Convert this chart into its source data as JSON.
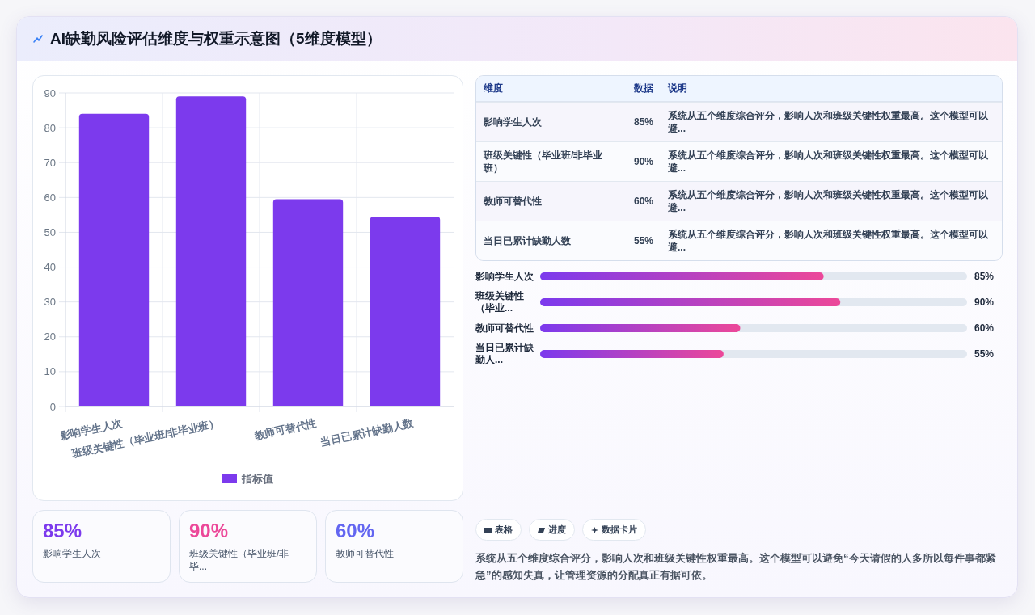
{
  "chart_data": [
    {
      "type": "bar",
      "title": "AI缺勤风险评估维度与权重示意图（5维度模型）",
      "categories": [
        "影响学生人次",
        "班级关键性（毕业班/非毕业班）",
        "教师可替代性",
        "当日已累计缺勤人数"
      ],
      "series": [
        {
          "name": "指标值",
          "color": "#7c3aed",
          "values": [
            84,
            89,
            59.5,
            54.5
          ]
        }
      ],
      "ylim": [
        0,
        90
      ],
      "yticks": [
        0,
        10,
        20,
        30,
        40,
        50,
        60,
        70,
        80,
        90
      ],
      "grid": true,
      "legend": "bottom"
    },
    {
      "type": "other",
      "annotations": [
        "维度",
        "数据",
        "说明",
        "影响学生人次",
        "85%",
        "系统从五个维度综合评分，影响人次和班级关键性权重最高。这个模型可以避...",
        "班级关键性（毕业班/非毕业班）",
        "90%",
        "系统从五个维度综合评分，影响人次和班级关键性权重最高。这个模型可以避...",
        "教师可替代性",
        "60%",
        "系统从五个维度综合评分，影响人次和班级关键性权重最高。这个模型可以避...",
        "当日已累计缺勤人数",
        "55%",
        "系统从五个维度综合评分，影响人次和班级关键性权重最高。这个模型可以避..."
      ]
    },
    {
      "type": "bar",
      "orientation": "horizontal",
      "categories": [
        "影响学生人次",
        "班级关键性（毕业...",
        "教师可替代性",
        "当日已累计缺勤人..."
      ],
      "series": [
        {
          "color": "#7c3aed",
          "values": [
            85,
            90,
            60,
            55
          ],
          "value_labels": [
            "85%",
            "90%",
            "60%",
            "55%"
          ]
        }
      ],
      "xlim": [
        0,
        128
      ],
      "tick_labels": "y"
    },
    {
      "type": "other",
      "categories": [
        "影响学生人次",
        "班级关键性（毕业班/非毕...",
        "教师可替代性"
      ],
      "annotations": [
        "85%",
        "90%",
        "60%"
      ]
    },
    {
      "type": "other",
      "categories": [
        "表格",
        "进度",
        "数据卡片"
      ],
      "annotations": [
        "系统从五个维度综合评分，影响人次和班级关键性权重最高。这个模型可以避免“今天请假的人多所以每件事都紧急”的感知失真，让管理资源的分配真正有据可依。"
      ]
    }
  ]
}
